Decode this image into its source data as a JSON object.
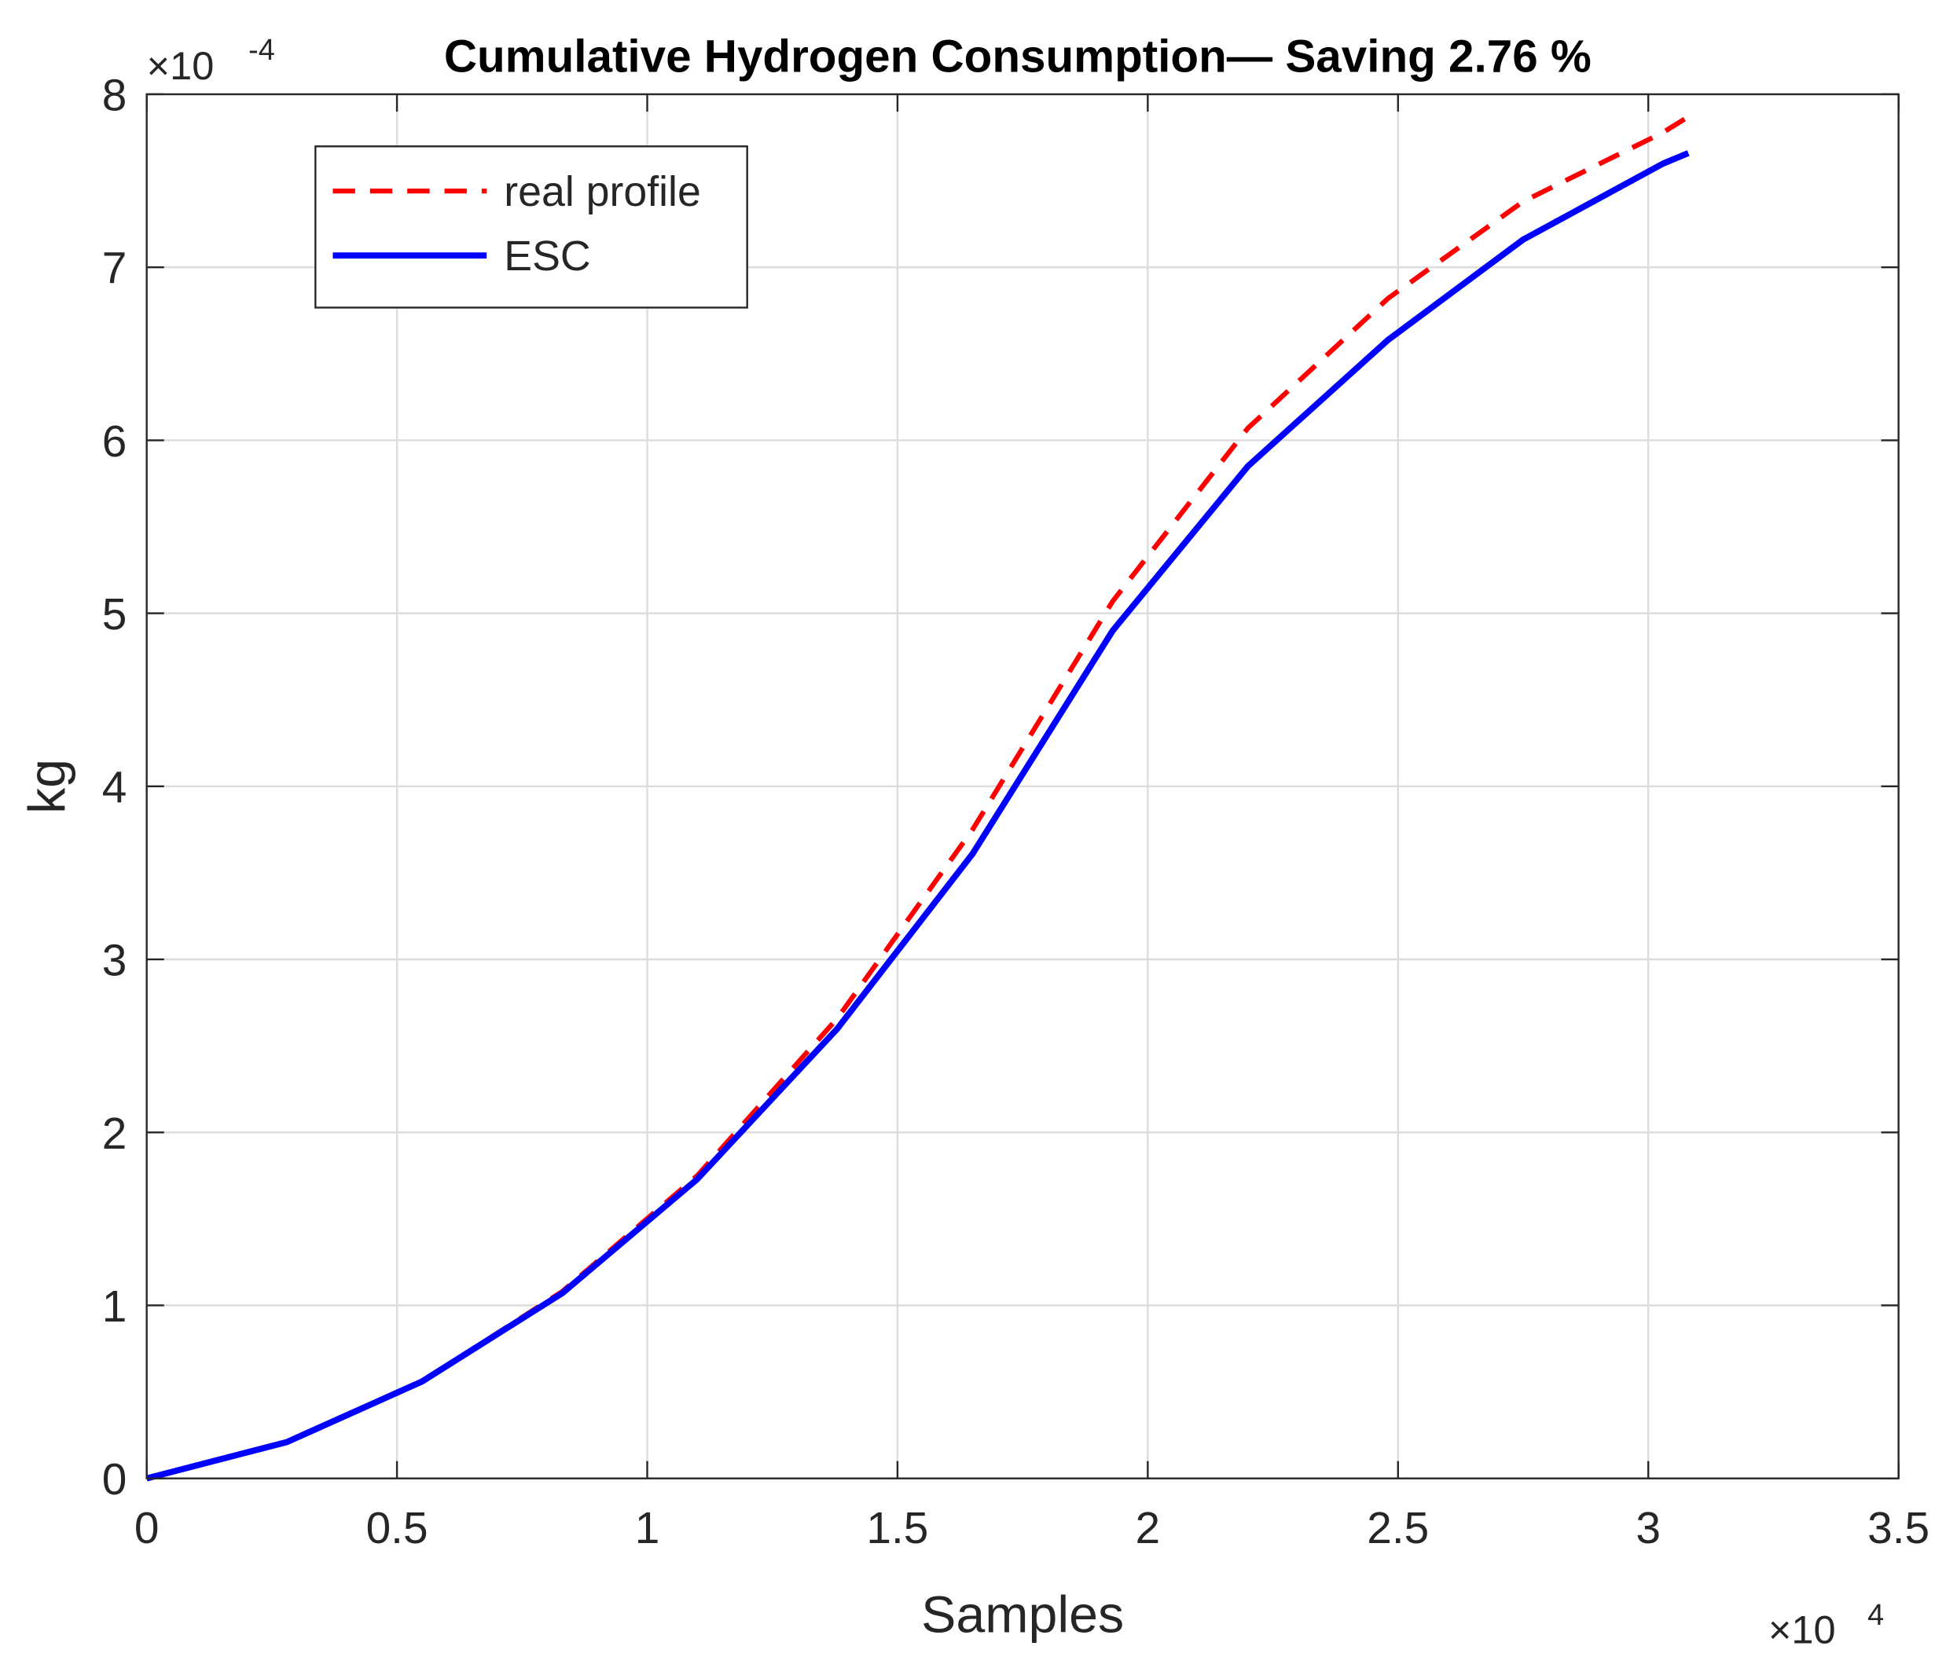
{
  "chart_data": {
    "type": "line",
    "title": "Cumulative Hydrogen Consumption— Saving 2.76 %",
    "x_label": "Samples",
    "y_label": "kg",
    "x_multiplier": {
      "base": "×10",
      "exponent": "4"
    },
    "y_multiplier": {
      "base": "×10",
      "exponent": "-4"
    },
    "xlim": [
      0,
      3.5
    ],
    "xticks": [
      0,
      0.5,
      1,
      1.5,
      2,
      2.5,
      3,
      3.5
    ],
    "ylim": [
      0,
      8
    ],
    "yticks": [
      0,
      1,
      2,
      3,
      4,
      5,
      6,
      7,
      8
    ],
    "grid": true,
    "legend_location": "northwest",
    "series": [
      {
        "name": "real profile",
        "color": "#ff0000",
        "dashed": true,
        "x": [
          0,
          0.28,
          0.55,
          0.83,
          1.1,
          1.38,
          1.65,
          1.93,
          2.2,
          2.48,
          2.75,
          3.03,
          3.08
        ],
        "values": [
          0,
          0.21,
          0.56,
          1.08,
          1.75,
          2.66,
          3.75,
          5.07,
          6.07,
          6.82,
          7.38,
          7.78,
          7.87
        ]
      },
      {
        "name": "ESC",
        "color": "#0000ff",
        "dashed": false,
        "x": [
          0,
          0.28,
          0.55,
          0.83,
          1.1,
          1.38,
          1.65,
          1.93,
          2.2,
          2.48,
          2.75,
          3.03,
          3.08
        ],
        "values": [
          0,
          0.21,
          0.56,
          1.07,
          1.73,
          2.6,
          3.61,
          4.9,
          5.85,
          6.58,
          7.16,
          7.6,
          7.66
        ]
      }
    ]
  }
}
